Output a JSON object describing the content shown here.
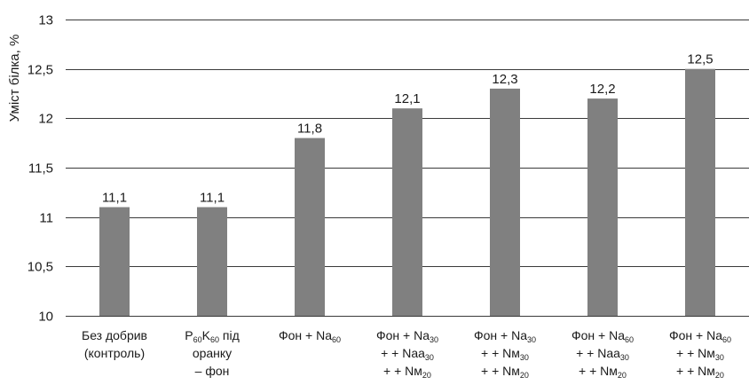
{
  "chart_data": {
    "type": "bar",
    "title": "",
    "xlabel": "",
    "ylabel": "Уміст білка, %",
    "ylim": [
      10,
      13
    ],
    "yticks": [
      "10",
      "10,5",
      "11",
      "11,5",
      "12",
      "12,5",
      "13"
    ],
    "grid": true,
    "legend": "none",
    "bar_color": "#808080",
    "categories": [
      "Без добрив (контроль)",
      "P60K60 під оранку – фон",
      "Фон + Na60",
      "Фон + Na30 + + Naa30 + + Nм20",
      "Фон + Na30 + + Nм30 + + Nм20",
      "Фон + Na60 + + Naa30 + + Nм20",
      "Фон + Na60 + + Nм30 + + Nм20"
    ],
    "values": [
      11.1,
      11.1,
      11.8,
      12.1,
      12.3,
      12.2,
      12.5
    ],
    "value_labels": [
      "11,1",
      "11,1",
      "11,8",
      "12,1",
      "12,3",
      "12,2",
      "12,5"
    ]
  }
}
